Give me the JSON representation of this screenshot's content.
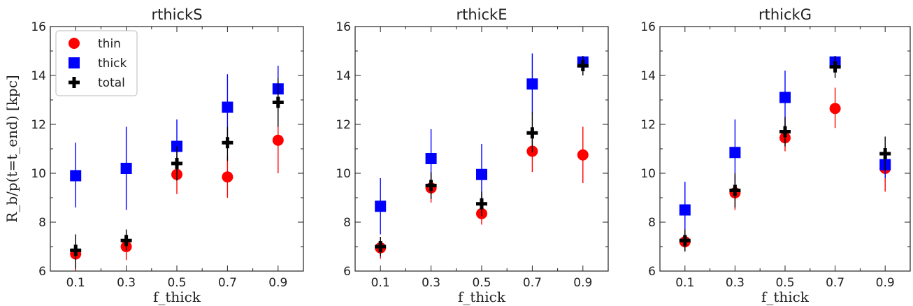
{
  "chart_data": [
    {
      "type": "scatter",
      "title": "rthickS",
      "xlabel": "f_thick",
      "ylabel": "R_b/p(t=t_end) [kpc]",
      "xlim": [
        0.0,
        1.0
      ],
      "ylim": [
        6,
        16
      ],
      "xticks": [
        "0.1",
        "0.3",
        "0.5",
        "0.7",
        "0.9"
      ],
      "yticks": [
        "6",
        "8",
        "10",
        "12",
        "14",
        "16"
      ],
      "legend": "top-left",
      "series": [
        {
          "name": "thin",
          "color": "#ff0000",
          "marker": "circle",
          "x": [
            0.1,
            0.3,
            0.5,
            0.7,
            0.9
          ],
          "y": [
            6.7,
            7.0,
            9.95,
            9.85,
            11.35
          ],
          "err_low": [
            6.0,
            6.45,
            9.15,
            9.0,
            10.0
          ],
          "err_high": [
            7.5,
            7.5,
            10.7,
            10.7,
            12.7
          ]
        },
        {
          "name": "thick",
          "color": "#0000ff",
          "marker": "square",
          "x": [
            0.1,
            0.3,
            0.5,
            0.7,
            0.9
          ],
          "y": [
            9.9,
            10.2,
            11.1,
            12.7,
            13.45
          ],
          "err_low": [
            8.6,
            8.5,
            10.05,
            11.4,
            12.45
          ],
          "err_high": [
            11.25,
            11.9,
            12.2,
            14.05,
            14.4
          ]
        },
        {
          "name": "total",
          "color": "#000000",
          "marker": "plus",
          "x": [
            0.1,
            0.3,
            0.5,
            0.7,
            0.9
          ],
          "y": [
            6.85,
            7.25,
            10.4,
            11.25,
            12.9
          ],
          "err_low": [
            6.1,
            6.85,
            9.7,
            10.5,
            11.9
          ],
          "err_high": [
            7.5,
            7.7,
            11.1,
            11.9,
            13.9
          ]
        }
      ]
    },
    {
      "type": "scatter",
      "title": "rthickE",
      "xlabel": "f_thick",
      "ylabel": "",
      "xlim": [
        0.0,
        1.0
      ],
      "ylim": [
        6,
        16
      ],
      "xticks": [
        "0.1",
        "0.3",
        "0.5",
        "0.7",
        "0.9"
      ],
      "yticks": [
        "6",
        "8",
        "10",
        "12",
        "14",
        "16"
      ],
      "series": [
        {
          "name": "thin",
          "color": "#ff0000",
          "marker": "circle",
          "x": [
            0.1,
            0.3,
            0.5,
            0.7,
            0.9
          ],
          "y": [
            6.95,
            9.4,
            8.35,
            10.9,
            10.75
          ],
          "err_low": [
            6.5,
            8.8,
            7.9,
            10.05,
            9.6
          ],
          "err_high": [
            7.4,
            10.0,
            8.8,
            11.8,
            11.9
          ]
        },
        {
          "name": "thick",
          "color": "#0000ff",
          "marker": "square",
          "x": [
            0.1,
            0.3,
            0.5,
            0.7,
            0.9
          ],
          "y": [
            8.65,
            10.6,
            9.95,
            13.65,
            14.55
          ],
          "err_low": [
            7.5,
            9.45,
            8.8,
            12.45,
            14.2
          ],
          "err_high": [
            9.8,
            11.8,
            11.2,
            14.9,
            14.8
          ]
        },
        {
          "name": "total",
          "color": "#000000",
          "marker": "plus",
          "x": [
            0.1,
            0.3,
            0.5,
            0.7,
            0.9
          ],
          "y": [
            7.0,
            9.5,
            8.75,
            11.65,
            14.4
          ],
          "err_low": [
            6.6,
            8.95,
            8.25,
            10.85,
            14.0
          ],
          "err_high": [
            7.4,
            10.05,
            9.25,
            12.5,
            14.8
          ]
        }
      ]
    },
    {
      "type": "scatter",
      "title": "rthickG",
      "xlabel": "f_thick",
      "ylabel": "",
      "xlim": [
        0.0,
        1.0
      ],
      "ylim": [
        6,
        16
      ],
      "xticks": [
        "0.1",
        "0.3",
        "0.5",
        "0.7",
        "0.9"
      ],
      "yticks": [
        "6",
        "8",
        "10",
        "12",
        "14",
        "16"
      ],
      "series": [
        {
          "name": "thin",
          "color": "#ff0000",
          "marker": "circle",
          "x": [
            0.1,
            0.3,
            0.5,
            0.7,
            0.9
          ],
          "y": [
            7.2,
            9.2,
            11.45,
            12.65,
            10.2
          ],
          "err_low": [
            6.8,
            8.5,
            10.9,
            11.85,
            9.25
          ],
          "err_high": [
            7.6,
            9.9,
            12.0,
            13.5,
            11.15
          ]
        },
        {
          "name": "thick",
          "color": "#0000ff",
          "marker": "square",
          "x": [
            0.1,
            0.3,
            0.5,
            0.7,
            0.9
          ],
          "y": [
            8.5,
            10.85,
            13.1,
            14.55,
            10.35
          ],
          "err_low": [
            7.4,
            9.5,
            11.95,
            14.2,
            9.8
          ],
          "err_high": [
            9.65,
            12.2,
            14.2,
            14.8,
            11.0
          ]
        },
        {
          "name": "total",
          "color": "#000000",
          "marker": "plus",
          "x": [
            0.1,
            0.3,
            0.5,
            0.7,
            0.9
          ],
          "y": [
            7.25,
            9.3,
            11.7,
            14.35,
            10.8
          ],
          "err_low": [
            6.8,
            8.6,
            11.1,
            13.9,
            10.1
          ],
          "err_high": [
            7.7,
            10.0,
            12.3,
            14.8,
            11.5
          ]
        }
      ]
    }
  ]
}
